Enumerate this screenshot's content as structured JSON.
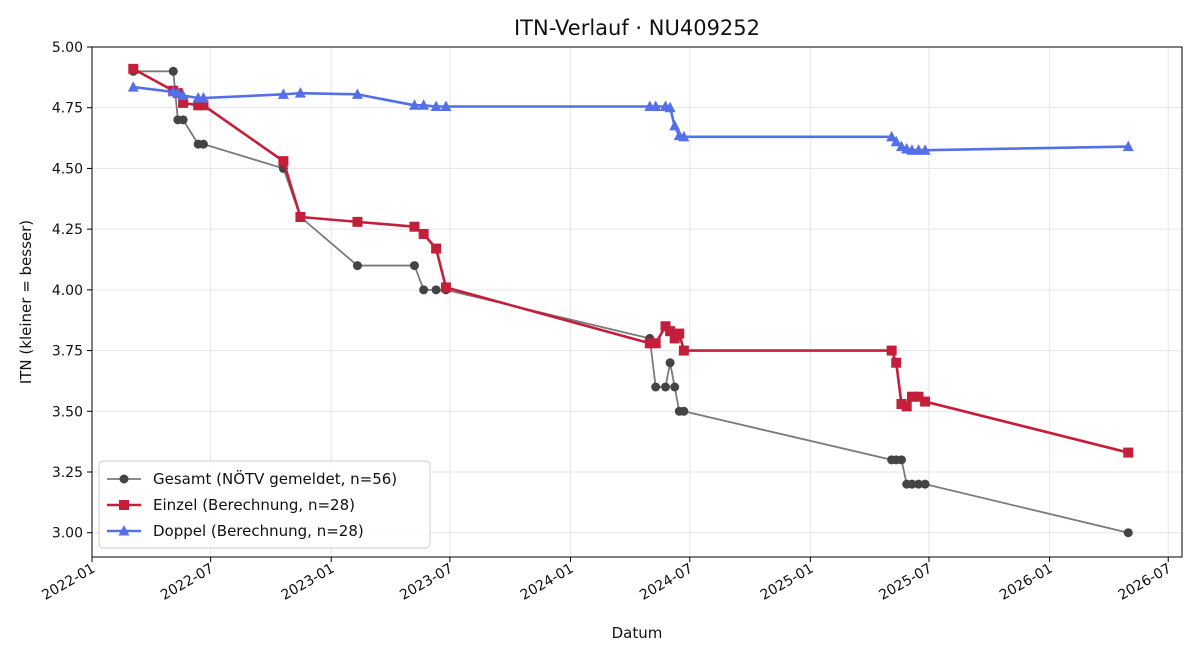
{
  "chart_data": {
    "type": "line",
    "title": "ITN-Verlauf · NU409252",
    "xlabel": "Datum",
    "ylabel": "ITN  (kleiner = besser)",
    "xlim": [
      "2022-01-01",
      "2026-07-22"
    ],
    "ylim": [
      2.9,
      5.0
    ],
    "x_ticks": [
      "2022-01",
      "2022-07",
      "2023-01",
      "2023-07",
      "2024-01",
      "2024-07",
      "2025-01",
      "2025-07",
      "2026-01",
      "2026-07"
    ],
    "y_ticks": [
      "3.00",
      "3.25",
      "3.50",
      "3.75",
      "4.00",
      "4.25",
      "4.50",
      "4.75",
      "5.00"
    ],
    "grid": true,
    "legend_position": "bottom-left",
    "series": [
      {
        "name": "Gesamt (NÖTV gemeldet, n=56)",
        "color": "#7a7a7a",
        "marker_color": "#444444",
        "marker": "circle",
        "points": [
          [
            "2022-03-05",
            4.9
          ],
          [
            "2022-05-05",
            4.9
          ],
          [
            "2022-05-12",
            4.7
          ],
          [
            "2022-05-20",
            4.7
          ],
          [
            "2022-06-12",
            4.6
          ],
          [
            "2022-06-20",
            4.6
          ],
          [
            "2022-10-20",
            4.5
          ],
          [
            "2022-11-15",
            4.3
          ],
          [
            "2023-02-10",
            4.1
          ],
          [
            "2023-05-08",
            4.1
          ],
          [
            "2023-05-22",
            4.0
          ],
          [
            "2023-06-10",
            4.0
          ],
          [
            "2023-06-25",
            4.0
          ],
          [
            "2024-05-01",
            3.8
          ],
          [
            "2024-05-10",
            3.6
          ],
          [
            "2024-05-25",
            3.6
          ],
          [
            "2024-06-01",
            3.7
          ],
          [
            "2024-06-08",
            3.6
          ],
          [
            "2024-06-15",
            3.5
          ],
          [
            "2024-06-22",
            3.5
          ],
          [
            "2025-05-05",
            3.3
          ],
          [
            "2025-05-12",
            3.3
          ],
          [
            "2025-05-20",
            3.3
          ],
          [
            "2025-05-28",
            3.2
          ],
          [
            "2025-06-05",
            3.2
          ],
          [
            "2025-06-15",
            3.2
          ],
          [
            "2025-06-25",
            3.2
          ],
          [
            "2026-05-01",
            3.0
          ]
        ]
      },
      {
        "name": "Einzel (Berechnung, n=28)",
        "color": "#c41e3a",
        "marker_color": "#c41e3a",
        "marker": "square",
        "points": [
          [
            "2022-03-05",
            4.91
          ],
          [
            "2022-05-05",
            4.82
          ],
          [
            "2022-05-12",
            4.81
          ],
          [
            "2022-05-20",
            4.77
          ],
          [
            "2022-06-12",
            4.76
          ],
          [
            "2022-06-20",
            4.76
          ],
          [
            "2022-10-20",
            4.53
          ],
          [
            "2022-11-15",
            4.3
          ],
          [
            "2023-02-10",
            4.28
          ],
          [
            "2023-05-08",
            4.26
          ],
          [
            "2023-05-22",
            4.23
          ],
          [
            "2023-06-10",
            4.17
          ],
          [
            "2023-06-25",
            4.01
          ],
          [
            "2024-05-01",
            3.78
          ],
          [
            "2024-05-10",
            3.78
          ],
          [
            "2024-05-25",
            3.85
          ],
          [
            "2024-06-01",
            3.83
          ],
          [
            "2024-06-08",
            3.8
          ],
          [
            "2024-06-15",
            3.82
          ],
          [
            "2024-06-22",
            3.75
          ],
          [
            "2025-05-05",
            3.75
          ],
          [
            "2025-05-12",
            3.7
          ],
          [
            "2025-05-20",
            3.53
          ],
          [
            "2025-05-28",
            3.52
          ],
          [
            "2025-06-05",
            3.56
          ],
          [
            "2025-06-15",
            3.56
          ],
          [
            "2025-06-25",
            3.54
          ],
          [
            "2026-05-01",
            3.33
          ]
        ]
      },
      {
        "name": "Doppel (Berechnung, n=28)",
        "color": "#5470e8",
        "marker_color": "#5470e8",
        "marker": "triangle",
        "points": [
          [
            "2022-03-05",
            4.835
          ],
          [
            "2022-05-05",
            4.815
          ],
          [
            "2022-05-12",
            4.81
          ],
          [
            "2022-05-20",
            4.8
          ],
          [
            "2022-06-12",
            4.79
          ],
          [
            "2022-06-20",
            4.79
          ],
          [
            "2022-10-20",
            4.805
          ],
          [
            "2022-11-15",
            4.81
          ],
          [
            "2023-02-10",
            4.805
          ],
          [
            "2023-05-08",
            4.76
          ],
          [
            "2023-05-22",
            4.76
          ],
          [
            "2023-06-10",
            4.755
          ],
          [
            "2023-06-25",
            4.755
          ],
          [
            "2024-05-01",
            4.755
          ],
          [
            "2024-05-10",
            4.755
          ],
          [
            "2024-05-25",
            4.755
          ],
          [
            "2024-06-01",
            4.75
          ],
          [
            "2024-06-08",
            4.675
          ],
          [
            "2024-06-15",
            4.635
          ],
          [
            "2024-06-22",
            4.63
          ],
          [
            "2025-05-05",
            4.63
          ],
          [
            "2025-05-12",
            4.61
          ],
          [
            "2025-05-20",
            4.59
          ],
          [
            "2025-05-28",
            4.58
          ],
          [
            "2025-06-05",
            4.575
          ],
          [
            "2025-06-15",
            4.575
          ],
          [
            "2025-06-25",
            4.575
          ],
          [
            "2026-05-01",
            4.59
          ]
        ]
      }
    ]
  }
}
